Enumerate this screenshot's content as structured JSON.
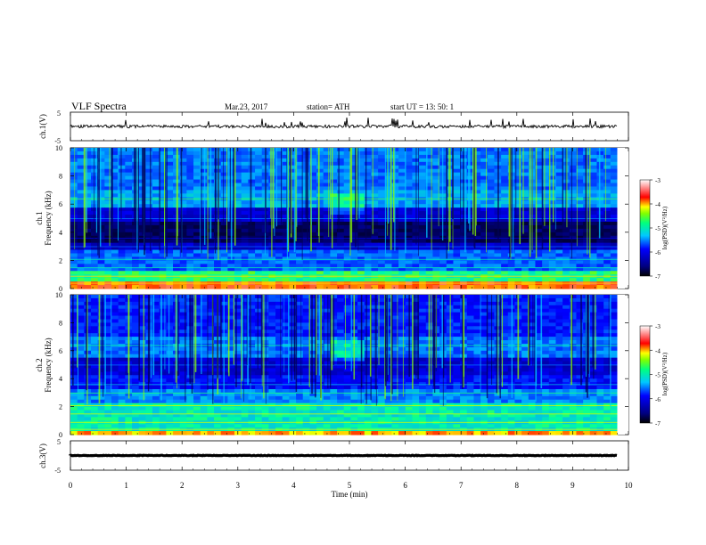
{
  "header": {
    "title": "VLF  Spectra",
    "date": "Mar.23, 2017",
    "station": "station= ATH",
    "start": "start  UT  =   13: 50: 1"
  },
  "colors": {
    "spectrogram_stops": [
      "#000080",
      "#0000ff",
      "#0080ff",
      "#00ffff",
      "#00ff80",
      "#80ff00",
      "#ffff00",
      "#ff8000",
      "#ff0000",
      "#ffffff"
    ],
    "trace": "#000000",
    "frame": "#000000"
  },
  "chart_data": [
    {
      "type": "line",
      "name": "ch1-waveform",
      "ylabel": "ch.1(V)",
      "ylim": [
        -5,
        5
      ],
      "yticks": [
        "5",
        "-5"
      ],
      "xlim": [
        0,
        10
      ],
      "trace_level_V": 0
    },
    {
      "type": "heatmap",
      "name": "ch1-spectrogram",
      "ylabel_channel": "ch.1",
      "ylabel": "Frequency  (kHz)",
      "ylim": [
        0,
        10
      ],
      "yticks": [
        "0",
        "2",
        "4",
        "6",
        "8",
        "10"
      ],
      "xlim": [
        0,
        10
      ],
      "data_end_min": 9.8,
      "colorbar": {
        "label": "log(PSD)(V²/Hz)",
        "range": [
          -7,
          -3
        ],
        "ticks": [
          "-3",
          "-4",
          "-5",
          "-6",
          "-7"
        ]
      }
    },
    {
      "type": "heatmap",
      "name": "ch2-spectrogram",
      "ylabel_channel": "ch.2",
      "ylabel": "Frequency  (kHz)",
      "ylim": [
        0,
        10
      ],
      "yticks": [
        "0",
        "2",
        "4",
        "6",
        "8",
        "10"
      ],
      "xlim": [
        0,
        10
      ],
      "data_end_min": 9.8,
      "colorbar": {
        "label": "log(PSD)(V²/Hz)",
        "range": [
          -7,
          -3
        ],
        "ticks": [
          "-3",
          "-4",
          "-5",
          "-6",
          "-7"
        ]
      }
    },
    {
      "type": "line",
      "name": "ch3-waveform",
      "ylabel": "ch.3(V)",
      "ylim": [
        -5,
        5
      ],
      "yticks": [
        "5",
        "-5"
      ],
      "xlim": [
        0,
        10
      ],
      "trace_level_V": 0,
      "xlabel": "Time  (min)",
      "xticks": [
        "0",
        "1",
        "2",
        "3",
        "4",
        "5",
        "6",
        "7",
        "8",
        "9",
        "10"
      ]
    }
  ]
}
